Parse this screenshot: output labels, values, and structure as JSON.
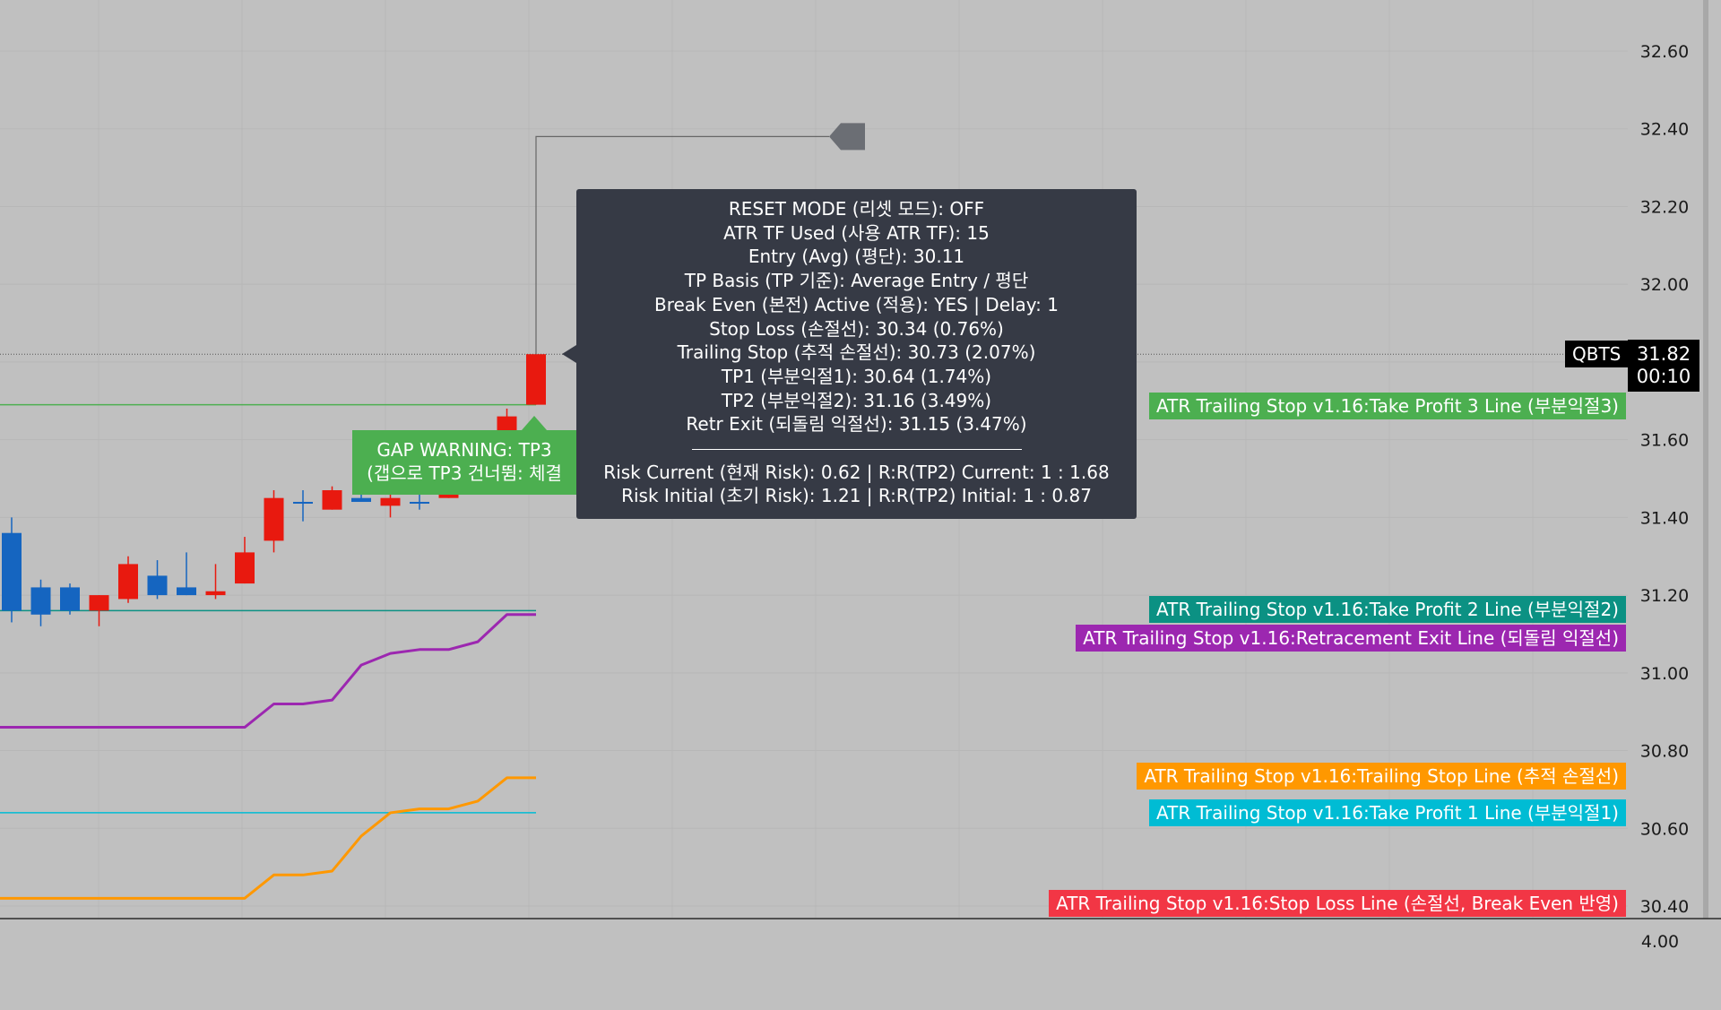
{
  "symbol": "QBTS",
  "last_price": "31.82",
  "countdown": "00:10",
  "colors": {
    "background": "#c0c0c0",
    "bull": "#1565c0",
    "bear": "#e8190f",
    "tp3": "#4caf50",
    "tp2": "#0b9183",
    "retracement": "#9c27b0",
    "trailing": "#ff9800",
    "tp1": "#00bcd4",
    "stop_loss": "#f23645",
    "tooltip_bg": "#363a45"
  },
  "chart_data": {
    "type": "candlestick",
    "y_range": [
      30.36,
      32.66
    ],
    "grid": true,
    "y_ticks": [
      "32.60",
      "32.40",
      "32.20",
      "32.00",
      "31.80",
      "31.60",
      "31.40",
      "31.20",
      "31.00",
      "30.80",
      "30.60",
      "30.40"
    ],
    "lower_pane_ticks": [
      "4.00"
    ],
    "candles": [
      {
        "open": 31.16,
        "high": 31.4,
        "low": 31.13,
        "close": 31.36
      },
      {
        "open": 31.15,
        "high": 31.24,
        "low": 31.12,
        "close": 31.22
      },
      {
        "open": 31.16,
        "high": 31.23,
        "low": 31.15,
        "close": 31.22
      },
      {
        "open": 31.2,
        "high": 31.2,
        "low": 31.12,
        "close": 31.16
      },
      {
        "open": 31.28,
        "high": 31.3,
        "low": 31.18,
        "close": 31.19
      },
      {
        "open": 31.2,
        "high": 31.29,
        "low": 31.19,
        "close": 31.25
      },
      {
        "open": 31.2,
        "high": 31.31,
        "low": 31.2,
        "close": 31.22
      },
      {
        "open": 31.21,
        "high": 31.28,
        "low": 31.19,
        "close": 31.2
      },
      {
        "open": 31.31,
        "high": 31.35,
        "low": 31.23,
        "close": 31.23
      },
      {
        "open": 31.45,
        "high": 31.47,
        "low": 31.31,
        "close": 31.34
      },
      {
        "open": 31.44,
        "high": 31.47,
        "low": 31.39,
        "close": 31.44
      },
      {
        "open": 31.47,
        "high": 31.48,
        "low": 31.42,
        "close": 31.42
      },
      {
        "open": 31.44,
        "high": 31.54,
        "low": 31.44,
        "close": 31.45
      },
      {
        "open": 31.45,
        "high": 31.47,
        "low": 31.4,
        "close": 31.43
      },
      {
        "open": 31.44,
        "high": 31.46,
        "low": 31.42,
        "close": 31.44
      },
      {
        "open": 31.53,
        "high": 31.53,
        "low": 31.45,
        "close": 31.45
      },
      {
        "open": 31.58,
        "high": 31.59,
        "low": 31.55,
        "close": 31.55
      },
      {
        "open": 31.66,
        "high": 31.68,
        "low": 31.57,
        "close": 31.56
      },
      {
        "open": 31.82,
        "high": 31.82,
        "low": 31.69,
        "close": 31.69
      }
    ],
    "series": [
      {
        "name": "ATR Trailing Stop v1.16:Take Profit 3 Line (부분익절3)",
        "color": "#4caf50",
        "level": 31.69,
        "width": 1.5
      },
      {
        "name": "ATR Trailing Stop v1.16:Take Profit 2 Line (부분익절2)",
        "color": "#0b9183",
        "level": 31.16,
        "width": 1.5
      },
      {
        "name": "ATR Trailing Stop v1.16:Retracement Exit Line (되돌림 익절선)",
        "color": "#9c27b0",
        "width": 3,
        "values": [
          30.86,
          30.86,
          30.86,
          30.86,
          30.86,
          30.86,
          30.86,
          30.86,
          30.86,
          30.92,
          30.92,
          30.93,
          31.02,
          31.05,
          31.06,
          31.06,
          31.08,
          31.15,
          31.15
        ]
      },
      {
        "name": "ATR Trailing Stop v1.16:Trailing Stop Line (추적 손절선)",
        "color": "#ff9800",
        "width": 3,
        "values": [
          30.42,
          30.42,
          30.42,
          30.42,
          30.42,
          30.42,
          30.42,
          30.42,
          30.42,
          30.48,
          30.48,
          30.49,
          30.58,
          30.64,
          30.65,
          30.65,
          30.67,
          30.73,
          30.73
        ]
      },
      {
        "name": "ATR Trailing Stop v1.16:Take Profit 1 Line (부분익절1)",
        "color": "#00bcd4",
        "level": 30.64,
        "width": 1.5
      },
      {
        "name": "ATR Trailing Stop v1.16:Stop Loss Line (손절선, Break Even 반영)",
        "color": "#f23645",
        "level": 30.34,
        "width": 1.5
      }
    ],
    "last_price_line": 31.82,
    "callout": {
      "start_index": 18,
      "level": 32.38
    }
  },
  "series_tags": {
    "tp3": "ATR Trailing Stop v1.16:Take Profit 3 Line (부분익절3)",
    "tp2": "ATR Trailing Stop v1.16:Take Profit 2 Line (부분익절2)",
    "retracement": "ATR Trailing Stop v1.16:Retracement Exit Line (되돌림 익절선)",
    "trailing": "ATR Trailing Stop v1.16:Trailing Stop Line (추적 손절선)",
    "tp1": "ATR Trailing Stop v1.16:Take Profit 1 Line (부분익절1)",
    "stop_loss": "ATR Trailing Stop v1.16:Stop Loss Line (손절선, Break Even 반영)"
  },
  "gap_label": {
    "line1": "GAP WARNING: TP3",
    "line2": "(갭으로 TP3 건너뜀: 체결"
  },
  "tooltip": {
    "lines": [
      "RESET MODE (리셋 모드): OFF",
      "ATR TF Used (사용 ATR TF): 15",
      "Entry (Avg) (평단): 30.11",
      "TP Basis (TP 기준): Average Entry / 평단",
      "Break Even (본전) Active (적용): YES | Delay: 1",
      "Stop Loss (손절선): 30.34 (0.76%)",
      "Trailing Stop (추적 손절선): 30.73 (2.07%)",
      "TP1 (부분익절1): 30.64 (1.74%)",
      "TP2 (부분익절2): 31.16 (3.49%)",
      "Retr Exit (되돌림 익절선): 31.15 (3.47%)"
    ],
    "risk_lines": [
      "Risk Current (현재 Risk): 0.62 | R:R(TP2) Current: 1 : 1.68",
      "Risk Initial (초기 Risk): 1.21 | R:R(TP2) Initial: 1 : 0.87"
    ]
  }
}
